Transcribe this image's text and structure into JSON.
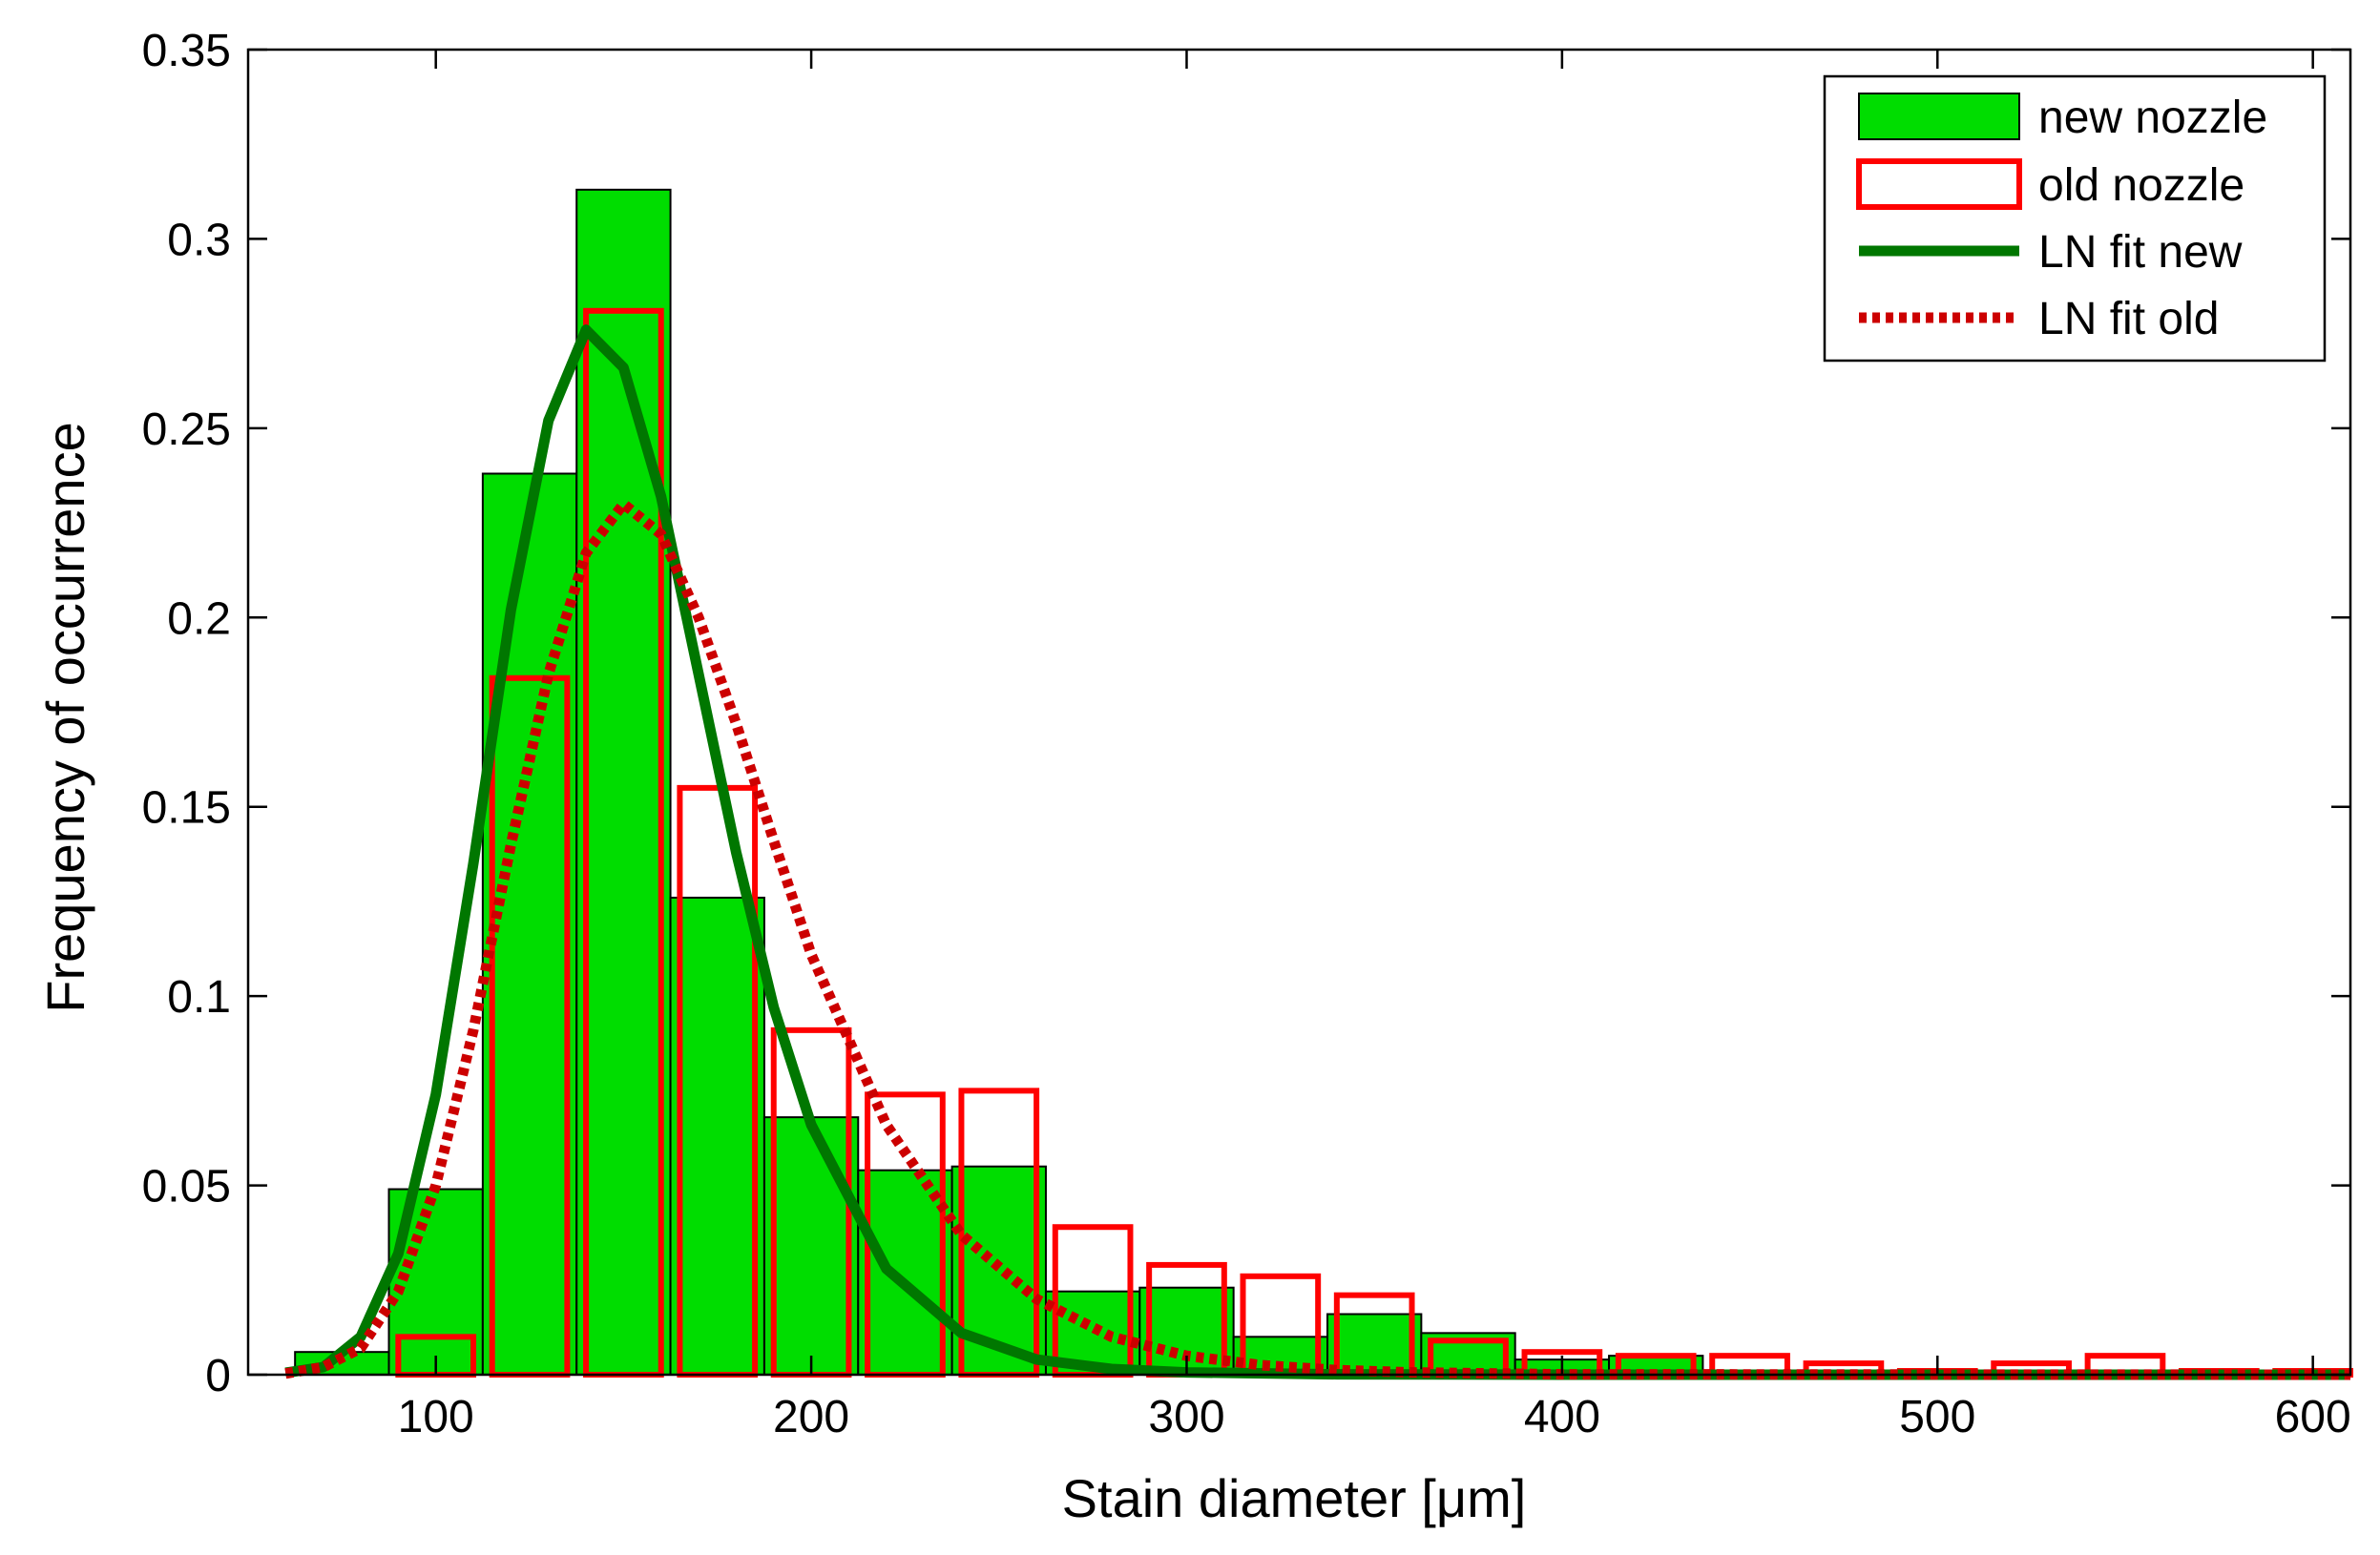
{
  "chart_data": {
    "type": "bar",
    "xlabel": "Stain diameter [μm]",
    "ylabel": "Frequency of occurrence",
    "xlim": [
      50,
      610
    ],
    "ylim": [
      0,
      0.35
    ],
    "xticks": [
      "100",
      "200",
      "300",
      "400",
      "500",
      "600"
    ],
    "yticks": [
      "0",
      "0.05",
      "0.1",
      "0.15",
      "0.2",
      "0.25",
      "0.3",
      "0.35"
    ],
    "grid": false,
    "legend_position": "top-right",
    "colors": {
      "new_fill": "#00dd00",
      "old_edge": "#ff0000",
      "fit_new": "#007700",
      "fit_old": "#cc0000"
    },
    "series": [
      {
        "name": "new nozzle",
        "kind": "histogram",
        "bin_width": 25,
        "bin_left_edges": [
          62.5,
          87.5,
          112.5,
          137.5,
          162.5,
          187.5,
          212.5,
          237.5,
          262.5,
          287.5,
          312.5,
          337.5,
          362.5,
          387.5,
          412.5
        ],
        "values": [
          0.006,
          0.049,
          0.238,
          0.313,
          0.126,
          0.068,
          0.054,
          0.055,
          0.022,
          0.023,
          0.01,
          0.016,
          0.011,
          0.004,
          0.005
        ]
      },
      {
        "name": "old nozzle",
        "kind": "histogram",
        "bin_width": 25,
        "bin_left_edges": [
          89,
          114,
          139,
          164,
          189,
          214,
          239,
          264,
          289,
          314,
          339,
          364,
          389,
          414,
          439,
          464,
          489,
          514,
          539,
          564,
          589
        ],
        "values": [
          0.01,
          0.184,
          0.281,
          0.155,
          0.091,
          0.074,
          0.075,
          0.039,
          0.029,
          0.026,
          0.021,
          0.009,
          0.006,
          0.005,
          0.005,
          0.003,
          0.001,
          0.003,
          0.005,
          0.001,
          0.001
        ]
      },
      {
        "name": "LN fit new",
        "kind": "curve",
        "x": [
          60,
          70,
          80,
          90,
          100,
          110,
          120,
          130,
          140,
          150,
          160,
          170,
          180,
          190,
          200,
          220,
          240,
          260,
          280,
          300,
          340,
          400,
          610
        ],
        "values": [
          0.0005,
          0.002,
          0.01,
          0.032,
          0.074,
          0.135,
          0.202,
          0.252,
          0.276,
          0.266,
          0.232,
          0.185,
          0.138,
          0.097,
          0.066,
          0.028,
          0.011,
          0.004,
          0.0015,
          0.0006,
          0.0001,
          0.0,
          0.0
        ]
      },
      {
        "name": "LN fit old",
        "kind": "curve",
        "x": [
          60,
          70,
          80,
          90,
          100,
          110,
          120,
          130,
          140,
          150,
          160,
          170,
          180,
          190,
          200,
          220,
          240,
          260,
          280,
          300,
          320,
          340,
          360,
          400,
          610
        ],
        "values": [
          0.0003,
          0.002,
          0.007,
          0.022,
          0.05,
          0.091,
          0.14,
          0.185,
          0.217,
          0.23,
          0.222,
          0.2,
          0.172,
          0.141,
          0.111,
          0.066,
          0.037,
          0.02,
          0.01,
          0.005,
          0.0025,
          0.0012,
          0.0006,
          0.0001,
          0.0
        ]
      }
    ]
  }
}
